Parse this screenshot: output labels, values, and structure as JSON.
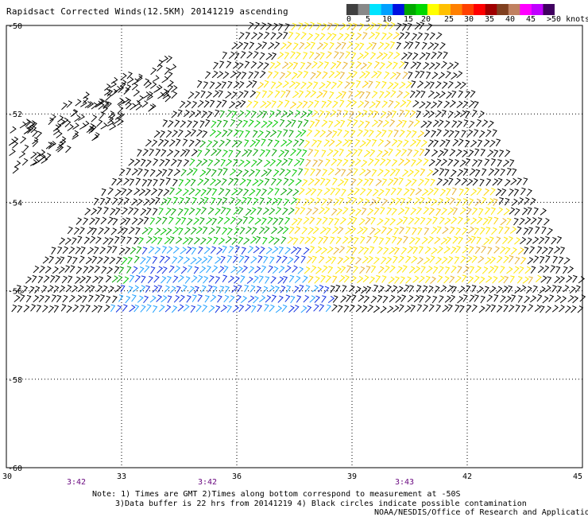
{
  "title": "Rapidsact Corrected Winds(12.5KM) 20141219 ascending",
  "colorbar": {
    "labels": [
      "0",
      "5",
      "10",
      "15",
      "20",
      "25",
      "30",
      "35",
      "40",
      "45",
      ">50 knots"
    ],
    "colors": [
      "#404040",
      "#888888",
      "#00e4ff",
      "#00a0ff",
      "#0010e0",
      "#00a800",
      "#00d800",
      "#ffff00",
      "#ffc000",
      "#ff8000",
      "#ff4000",
      "#ff0000",
      "#a00000",
      "#804020",
      "#c08060",
      "#ff00ff",
      "#c000ff",
      "#400060"
    ]
  },
  "axes": {
    "lat_labels": [
      "-50",
      "-52",
      "-54",
      "-56",
      "-58",
      "-60"
    ],
    "lon_labels": [
      "30",
      "33",
      "36",
      "39",
      "42",
      "45"
    ],
    "lat_values": [
      -50,
      -52,
      -54,
      -56,
      -58,
      -60
    ],
    "lon_values": [
      30,
      33,
      36,
      39,
      42,
      45
    ]
  },
  "time_labels": [
    {
      "text": "3:42",
      "lon": 31.8
    },
    {
      "text": "3:42",
      "lon": 35.2
    },
    {
      "text": "3:43",
      "lon": 40.1
    }
  ],
  "notes": {
    "line1": "Note: 1) Times are GMT 2)Times along bottom correspond to measurement at -50S",
    "line2": "3)Data buffer is 22 hrs from 20141219 4) Black circles indicate possible contamination",
    "line3": "NOAA/NESDIS/Office of Research and Applications"
  }
}
